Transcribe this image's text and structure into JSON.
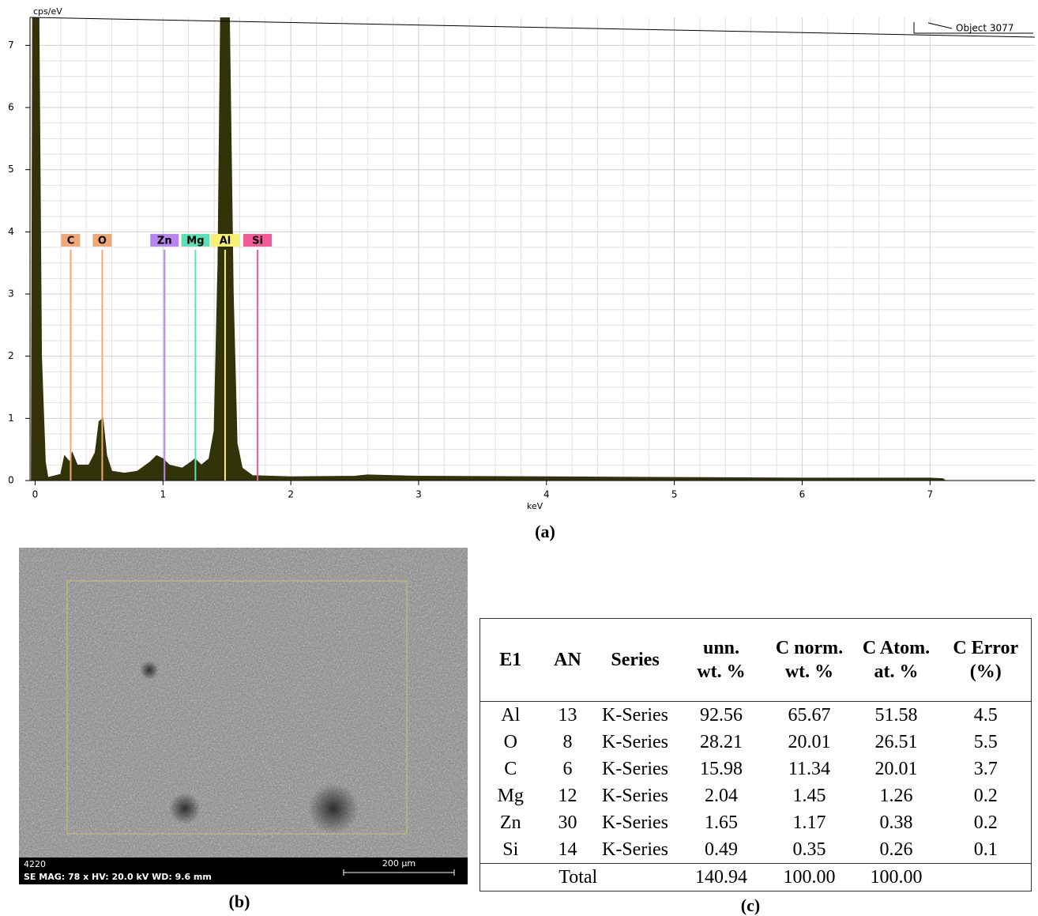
{
  "chart_data": {
    "type": "area",
    "x_label": "keV",
    "y_label": "cps/eV",
    "annotation": "Object 3077",
    "caption": "(a)",
    "x": [
      -0.03,
      -0.02,
      0.03,
      0.05,
      0.08,
      0.1,
      0.2,
      0.23,
      0.27,
      0.29,
      0.33,
      0.42,
      0.47,
      0.5,
      0.53,
      0.56,
      0.6,
      0.7,
      0.8,
      0.9,
      0.95,
      1.0,
      1.05,
      1.15,
      1.22,
      1.25,
      1.3,
      1.36,
      1.4,
      1.43,
      1.45,
      1.52,
      1.55,
      1.58,
      1.62,
      1.7,
      2.0,
      2.5,
      2.6,
      3.0,
      4.0,
      5.0,
      6.0,
      7.0,
      7.1,
      7.12
    ],
    "values": [
      0,
      7.45,
      7.45,
      2,
      0.3,
      0.05,
      0.1,
      0.4,
      0.3,
      0.45,
      0.25,
      0.25,
      0.45,
      0.95,
      1.0,
      0.4,
      0.15,
      0.12,
      0.15,
      0.3,
      0.4,
      0.35,
      0.25,
      0.2,
      0.3,
      0.35,
      0.25,
      0.35,
      0.8,
      3.5,
      7.45,
      7.45,
      3,
      0.6,
      0.2,
      0.08,
      0.06,
      0.07,
      0.09,
      0.07,
      0.06,
      0.05,
      0.04,
      0.04,
      0.03,
      0
    ],
    "color": "#33330a",
    "markers": [
      {
        "label": "C",
        "x": 0.278,
        "color": "#f0a874"
      },
      {
        "label": "O",
        "x": 0.525,
        "color": "#f0a874"
      },
      {
        "label": "Zn",
        "x": 1.012,
        "color": "#b884f0"
      },
      {
        "label": "Mg",
        "x": 1.254,
        "color": "#5ee0b4"
      },
      {
        "label": "Al",
        "x": 1.486,
        "color": "#f4f070"
      },
      {
        "label": "Si",
        "x": 1.74,
        "color": "#f45c98"
      }
    ],
    "xlim": [
      -0.04,
      7.82
    ],
    "ylim": [
      0,
      7.45
    ],
    "xticks": [
      0,
      1,
      2,
      3,
      4,
      5,
      6,
      7
    ],
    "yticks": [
      0,
      1,
      2,
      3,
      4,
      5,
      6,
      7
    ],
    "grid": true
  },
  "image": {
    "id": "4220",
    "info": "SE  MAG: 78 x  HV: 20.0 kV  WD: 9.6 mm",
    "scale": "200 µm",
    "caption": "(b)"
  },
  "table": {
    "caption": "(c)",
    "header": [
      [
        "E1"
      ],
      [
        "AN"
      ],
      [
        "Series"
      ],
      [
        "unn.",
        "wt. %"
      ],
      [
        "C norm.",
        "wt. %"
      ],
      [
        "C Atom.",
        "at. %"
      ],
      [
        "C Error",
        "(%)"
      ]
    ],
    "rows": [
      [
        "Al",
        "13",
        "K-Series",
        "92.56",
        "65.67",
        "51.58",
        "4.5"
      ],
      [
        "O",
        "8",
        "K-Series",
        "28.21",
        "20.01",
        "26.51",
        "5.5"
      ],
      [
        "C",
        "6",
        "K-Series",
        "15.98",
        "11.34",
        "20.01",
        "3.7"
      ],
      [
        "Mg",
        "12",
        "K-Series",
        "2.04",
        "1.45",
        "1.26",
        "0.2"
      ],
      [
        "Zn",
        "30",
        "K-Series",
        "1.65",
        "1.17",
        "0.38",
        "0.2"
      ],
      [
        "Si",
        "14",
        "K-Series",
        "0.49",
        "0.35",
        "0.26",
        "0.1"
      ]
    ],
    "total": [
      "Total",
      "140.94",
      "100.00",
      "100.00"
    ]
  }
}
